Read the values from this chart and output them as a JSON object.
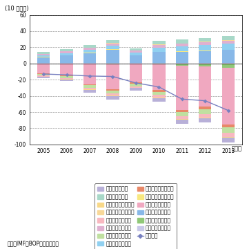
{
  "years": [
    2005,
    2006,
    2007,
    2008,
    2009,
    2010,
    2011,
    2012,
    2013
  ],
  "title_y": "(10 億ドル)",
  "xlabel": "（年）",
  "ylim": [
    -100,
    60
  ],
  "yticks": [
    -100,
    -80,
    -60,
    -40,
    -20,
    0,
    20,
    40,
    60
  ],
  "source": "資料：IMF「BOP」から作成。",
  "receive": {
    "海上輸送旅客受取": [
      0.3,
      0.4,
      0.5,
      0.6,
      0.4,
      0.5,
      0.7,
      0.9,
      1.0
    ],
    "海上輸送貨物受取": [
      7.5,
      9.5,
      12.5,
      16.5,
      9.5,
      13.5,
      13.5,
      14.5,
      15.5
    ],
    "海上輸送その他受取": [
      0.4,
      0.5,
      0.5,
      0.6,
      0.4,
      0.5,
      0.6,
      0.7,
      0.8
    ],
    "航空輸送旅客受取": [
      2.0,
      2.5,
      3.5,
      4.0,
      3.5,
      5.0,
      6.0,
      6.5,
      7.0
    ],
    "航空輸送貨物受取": [
      1.5,
      2.0,
      2.5,
      3.0,
      2.0,
      3.5,
      3.5,
      3.5,
      3.5
    ],
    "航空輸送その他受取": [
      0.3,
      0.3,
      0.4,
      0.5,
      0.3,
      0.5,
      0.6,
      0.7,
      0.8
    ],
    "その他輸送受取": [
      2.0,
      2.5,
      3.0,
      4.0,
      2.5,
      4.5,
      4.5,
      5.0,
      5.5
    ]
  },
  "payment": {
    "海上輸送旅客支払": [
      -0.2,
      -0.3,
      -0.5,
      -0.6,
      -0.5,
      -1.0,
      -2.5,
      -3.5,
      -5.0
    ],
    "海上輸送貨物支払": [
      -12.0,
      -14.0,
      -25.0,
      -31.0,
      -23.0,
      -32.0,
      -55.0,
      -50.0,
      -70.0
    ],
    "海上輸送その他支払": [
      -0.8,
      -1.0,
      -1.5,
      -2.0,
      -1.5,
      -2.0,
      -2.5,
      -3.0,
      -4.0
    ],
    "航空輸送旅客支払": [
      -2.0,
      -2.5,
      -3.0,
      -3.5,
      -3.0,
      -4.0,
      -5.0,
      -6.0,
      -7.0
    ],
    "航空輸送貨物支払": [
      -1.0,
      -1.5,
      -2.0,
      -2.5,
      -2.0,
      -3.0,
      -3.5,
      -4.0,
      -4.5
    ],
    "航空輸送その他支払": [
      -0.3,
      -0.4,
      -0.5,
      -0.6,
      -0.4,
      -0.6,
      -0.8,
      -0.9,
      -1.0
    ],
    "その他輸送支払": [
      -1.5,
      -2.0,
      -3.5,
      -4.0,
      -3.5,
      -5.0,
      -5.0,
      -5.0,
      -6.0
    ]
  },
  "net": [
    -13.0,
    -14.0,
    -15.5,
    -16.0,
    -24.0,
    -29.0,
    -44.0,
    -46.0,
    -58.0
  ],
  "receive_colors": {
    "海上輸送旅客受取": "#c8c8e8",
    "海上輸送貨物受取": "#88b8e8",
    "海上輸送その他受取": "#f8e880",
    "航空輸送旅客受取": "#90d0f0",
    "航空輸送貨物受取": "#e0b0d0",
    "航空輸送その他受取": "#f8d898",
    "その他輸送受取": "#a8d8c8"
  },
  "payment_colors": {
    "海上輸送旅客支払": "#90c878",
    "海上輸送貨物支払": "#f0a8c0",
    "海上輸送その他支払": "#e88868",
    "航空輸送旅客支払": "#c0e0a0",
    "航空輸送貨物支払": "#f8b8c0",
    "航空輸送その他支払": "#f8d888",
    "その他輸送支払": "#b8b0d8"
  },
  "net_color": "#7880c0",
  "bar_width": 0.55,
  "legend_order_left": [
    "その他輸送支払",
    "航空輸送その他支払",
    "航空輸送貨物支払",
    "航空輸送旅客支払",
    "海上輸送その他支払",
    "海上輸送貨物支払",
    "海上輸送旅客支払"
  ],
  "legend_order_right": [
    "その他輸送受取",
    "航空輸送その他受取",
    "航空輸送貨物受取",
    "航空輸送旅客受取",
    "海上輸送その他受取",
    "海上輸送貨物受取",
    "海上輸送旅客受取"
  ]
}
